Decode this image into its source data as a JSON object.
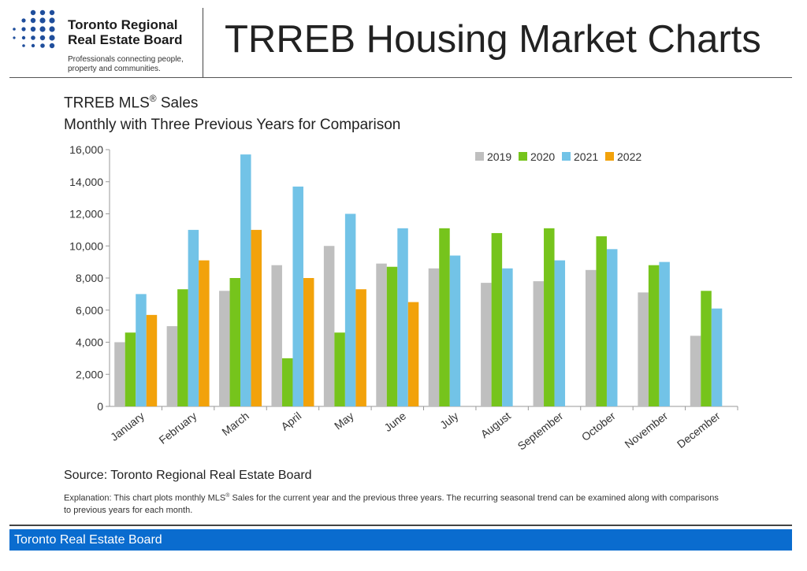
{
  "header": {
    "brand_line1": "Toronto Regional",
    "brand_line2": "Real Estate Board",
    "tagline": "Professionals connecting people, property and communities.",
    "page_title": "TRREB Housing Market Charts"
  },
  "chart": {
    "title_prefix": "TRREB MLS",
    "title_reg": "®",
    "title_suffix": " Sales",
    "subtitle": "Monthly with Three Previous Years for Comparison"
  },
  "source": "Source: Toronto Regional Real Estate Board",
  "explanation_prefix": "Explanation: This chart plots monthly MLS",
  "explanation_reg": "®",
  "explanation_suffix": " Sales for the current year and the previous three years. The recurring seasonal trend can be examined along with comparisons to previous years for each month.",
  "footer": {
    "label": "Toronto Real Estate Board"
  },
  "colors": {
    "brand_blue": "#0a6ccf",
    "logo_dots": "#1f4e9c"
  },
  "chart_data": {
    "type": "bar",
    "categories": [
      "January",
      "February",
      "March",
      "April",
      "May",
      "June",
      "July",
      "August",
      "September",
      "October",
      "November",
      "December"
    ],
    "series": [
      {
        "name": "2019",
        "color": "#bfbfbf",
        "values": [
          4000,
          5000,
          7200,
          8800,
          10000,
          8900,
          8600,
          7700,
          7800,
          8500,
          7100,
          4400
        ]
      },
      {
        "name": "2020",
        "color": "#76c41c",
        "values": [
          4600,
          7300,
          8000,
          3000,
          4600,
          8700,
          11100,
          10800,
          11100,
          10600,
          8800,
          7200
        ]
      },
      {
        "name": "2021",
        "color": "#72c3e7",
        "values": [
          7000,
          11000,
          15700,
          13700,
          12000,
          11100,
          9400,
          8600,
          9100,
          9800,
          9000,
          6100
        ]
      },
      {
        "name": "2022",
        "color": "#f2a20b",
        "values": [
          5700,
          9100,
          11000,
          8000,
          7300,
          6500,
          null,
          null,
          null,
          null,
          null,
          null
        ]
      }
    ],
    "ylim": [
      0,
      16000
    ],
    "yticks": [
      "0",
      "2,000",
      "4,000",
      "6,000",
      "8,000",
      "10,000",
      "12,000",
      "14,000",
      "16,000"
    ],
    "legend_position": "top-right",
    "grid": false
  }
}
